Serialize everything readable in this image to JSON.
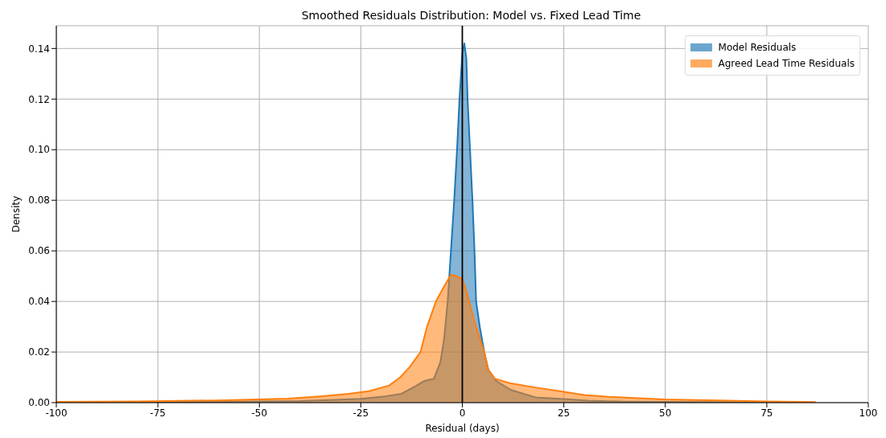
{
  "chart_data": {
    "type": "area",
    "title": "Smoothed Residuals Distribution: Model vs. Fixed Lead Time",
    "xlabel": "Residual (days)",
    "ylabel": "Density",
    "xlim": [
      -100,
      100
    ],
    "xticks": [
      -100,
      -75,
      -50,
      -25,
      0,
      25,
      50,
      75,
      100
    ],
    "ylim": [
      0,
      0.149
    ],
    "yticks": [
      {
        "value": 0,
        "label": "0.00"
      },
      {
        "value": 0.02,
        "label": "0.02"
      },
      {
        "value": 0.04,
        "label": "0.04"
      },
      {
        "value": 0.06,
        "label": "0.06"
      },
      {
        "value": 0.08,
        "label": "0.08"
      },
      {
        "value": 0.1,
        "label": "0.10"
      },
      {
        "value": 0.12,
        "label": "0.12"
      },
      {
        "value": 0.14,
        "label": "0.14"
      }
    ],
    "grid": true,
    "legend": "top right",
    "ref_lines": [
      {
        "axis": "x",
        "value": 0,
        "color": "#000000",
        "line_style": "solid"
      }
    ],
    "series": [
      {
        "name": "Model Residuals",
        "color": "#1f77b4",
        "x": [
          -100,
          -60,
          -40,
          -30,
          -25,
          -19,
          -15,
          -11.3,
          -9.5,
          -7,
          -5.4,
          -4.5,
          -3.6,
          -2.8,
          -2,
          -1.3,
          -0.7,
          0,
          0.5,
          1,
          1.3,
          1.9,
          2.5,
          3,
          3.4,
          4.3,
          5.4,
          6.4,
          8.4,
          12,
          18,
          25,
          31,
          40,
          60,
          87
        ],
        "values": [
          0.0001,
          0.0003,
          0.0006,
          0.0012,
          0.0015,
          0.0025,
          0.0035,
          0.0067,
          0.0085,
          0.0095,
          0.016,
          0.025,
          0.04,
          0.06,
          0.08,
          0.1,
          0.12,
          0.138,
          0.142,
          0.136,
          0.12,
          0.1,
          0.08,
          0.06,
          0.04,
          0.03,
          0.02,
          0.013,
          0.0085,
          0.005,
          0.0021,
          0.0014,
          0.0008,
          0.0004,
          0.0002,
          0.0001
        ]
      },
      {
        "name": "Agreed Lead Time Residuals",
        "color": "#ff7f0e",
        "x": [
          -100,
          -80,
          -60,
          -43,
          -35,
          -28,
          -23,
          -18,
          -15.3,
          -13,
          -10.3,
          -8.7,
          -6.5,
          -5,
          -2.8,
          -1.5,
          0,
          1,
          3,
          5.4,
          6.4,
          8,
          11.7,
          18,
          24.7,
          30,
          36,
          50,
          63,
          75,
          87
        ],
        "values": [
          0.0003,
          0.0005,
          0.0009,
          0.0016,
          0.0025,
          0.0035,
          0.0045,
          0.0068,
          0.01,
          0.014,
          0.02,
          0.03,
          0.04,
          0.0445,
          0.0506,
          0.05,
          0.049,
          0.044,
          0.032,
          0.02,
          0.013,
          0.0095,
          0.0077,
          0.006,
          0.0044,
          0.003,
          0.0023,
          0.0013,
          0.0009,
          0.0005,
          0.0002
        ]
      }
    ]
  }
}
